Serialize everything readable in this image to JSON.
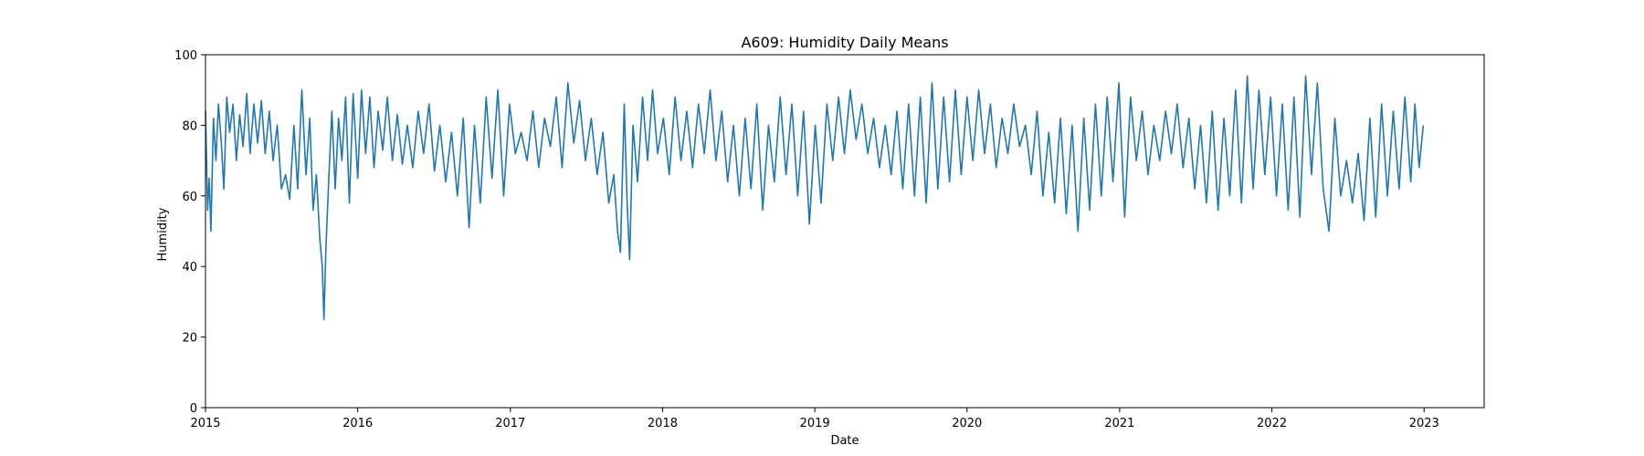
{
  "chart_data": {
    "type": "line",
    "title": "A609: Humidity Daily Means",
    "xlabel": "Date",
    "ylabel": "Humidity",
    "xlim": [
      "2015-01-01",
      "2023-05-25"
    ],
    "ylim": [
      0,
      100
    ],
    "x_ticks": [
      "2015",
      "2016",
      "2017",
      "2018",
      "2019",
      "2020",
      "2021",
      "2022",
      "2023"
    ],
    "y_ticks": [
      "0",
      "20",
      "40",
      "60",
      "80",
      "100"
    ],
    "grid": false,
    "legend": "none",
    "series": [
      {
        "color": "#1f77b4",
        "points": [
          [
            "2015-01-01",
            84
          ],
          [
            "2015-01-06",
            56
          ],
          [
            "2015-01-10",
            65
          ],
          [
            "2015-01-14",
            50
          ],
          [
            "2015-01-20",
            82
          ],
          [
            "2015-01-26",
            70
          ],
          [
            "2015-02-01",
            86
          ],
          [
            "2015-02-08",
            75
          ],
          [
            "2015-02-14",
            62
          ],
          [
            "2015-02-21",
            88
          ],
          [
            "2015-02-28",
            78
          ],
          [
            "2015-03-08",
            86
          ],
          [
            "2015-03-16",
            70
          ],
          [
            "2015-03-24",
            83
          ],
          [
            "2015-04-01",
            74
          ],
          [
            "2015-04-10",
            89
          ],
          [
            "2015-04-18",
            72
          ],
          [
            "2015-04-27",
            86
          ],
          [
            "2015-05-06",
            75
          ],
          [
            "2015-05-15",
            87
          ],
          [
            "2015-05-24",
            72
          ],
          [
            "2015-06-03",
            84
          ],
          [
            "2015-06-12",
            70
          ],
          [
            "2015-06-22",
            80
          ],
          [
            "2015-07-02",
            62
          ],
          [
            "2015-07-12",
            66
          ],
          [
            "2015-07-22",
            59
          ],
          [
            "2015-08-01",
            80
          ],
          [
            "2015-08-10",
            62
          ],
          [
            "2015-08-20",
            90
          ],
          [
            "2015-08-30",
            66
          ],
          [
            "2015-09-08",
            82
          ],
          [
            "2015-09-16",
            56
          ],
          [
            "2015-09-24",
            66
          ],
          [
            "2015-10-02",
            48
          ],
          [
            "2015-10-08",
            40
          ],
          [
            "2015-10-12",
            25
          ],
          [
            "2015-10-17",
            46
          ],
          [
            "2015-10-24",
            66
          ],
          [
            "2015-10-31",
            84
          ],
          [
            "2015-11-08",
            62
          ],
          [
            "2015-11-16",
            82
          ],
          [
            "2015-11-24",
            70
          ],
          [
            "2015-12-03",
            88
          ],
          [
            "2015-12-12",
            58
          ],
          [
            "2015-12-21",
            89
          ],
          [
            "2016-01-01",
            65
          ],
          [
            "2016-01-10",
            90
          ],
          [
            "2016-01-20",
            72
          ],
          [
            "2016-01-30",
            88
          ],
          [
            "2016-02-09",
            68
          ],
          [
            "2016-02-19",
            84
          ],
          [
            "2016-03-01",
            73
          ],
          [
            "2016-03-12",
            88
          ],
          [
            "2016-03-24",
            70
          ],
          [
            "2016-04-05",
            83
          ],
          [
            "2016-04-17",
            69
          ],
          [
            "2016-04-29",
            80
          ],
          [
            "2016-05-12",
            68
          ],
          [
            "2016-05-25",
            84
          ],
          [
            "2016-06-07",
            72
          ],
          [
            "2016-06-20",
            86
          ],
          [
            "2016-07-03",
            67
          ],
          [
            "2016-07-16",
            80
          ],
          [
            "2016-07-30",
            64
          ],
          [
            "2016-08-13",
            78
          ],
          [
            "2016-08-27",
            60
          ],
          [
            "2016-09-10",
            82
          ],
          [
            "2016-09-24",
            51
          ],
          [
            "2016-10-07",
            80
          ],
          [
            "2016-10-21",
            58
          ],
          [
            "2016-11-04",
            88
          ],
          [
            "2016-11-18",
            65
          ],
          [
            "2016-12-02",
            90
          ],
          [
            "2016-12-16",
            60
          ],
          [
            "2016-12-30",
            86
          ],
          [
            "2017-01-13",
            72
          ],
          [
            "2017-01-27",
            78
          ],
          [
            "2017-02-10",
            70
          ],
          [
            "2017-02-24",
            84
          ],
          [
            "2017-03-10",
            68
          ],
          [
            "2017-03-24",
            82
          ],
          [
            "2017-04-07",
            74
          ],
          [
            "2017-04-21",
            88
          ],
          [
            "2017-05-05",
            68
          ],
          [
            "2017-05-19",
            92
          ],
          [
            "2017-06-02",
            75
          ],
          [
            "2017-06-16",
            87
          ],
          [
            "2017-06-30",
            70
          ],
          [
            "2017-07-14",
            82
          ],
          [
            "2017-07-28",
            66
          ],
          [
            "2017-08-11",
            78
          ],
          [
            "2017-08-25",
            58
          ],
          [
            "2017-09-06",
            66
          ],
          [
            "2017-09-15",
            50
          ],
          [
            "2017-09-22",
            44
          ],
          [
            "2017-10-01",
            86
          ],
          [
            "2017-10-08",
            58
          ],
          [
            "2017-10-14",
            42
          ],
          [
            "2017-10-22",
            80
          ],
          [
            "2017-11-02",
            64
          ],
          [
            "2017-11-14",
            88
          ],
          [
            "2017-11-26",
            70
          ],
          [
            "2017-12-08",
            90
          ],
          [
            "2017-12-20",
            72
          ],
          [
            "2018-01-03",
            82
          ],
          [
            "2018-01-17",
            66
          ],
          [
            "2018-01-31",
            88
          ],
          [
            "2018-02-14",
            70
          ],
          [
            "2018-02-28",
            84
          ],
          [
            "2018-03-14",
            68
          ],
          [
            "2018-03-28",
            86
          ],
          [
            "2018-04-11",
            72
          ],
          [
            "2018-04-25",
            90
          ],
          [
            "2018-05-09",
            70
          ],
          [
            "2018-05-23",
            84
          ],
          [
            "2018-06-06",
            64
          ],
          [
            "2018-06-20",
            80
          ],
          [
            "2018-07-04",
            60
          ],
          [
            "2018-07-18",
            82
          ],
          [
            "2018-08-01",
            62
          ],
          [
            "2018-08-15",
            86
          ],
          [
            "2018-08-29",
            56
          ],
          [
            "2018-09-12",
            80
          ],
          [
            "2018-09-26",
            64
          ],
          [
            "2018-10-10",
            88
          ],
          [
            "2018-10-24",
            66
          ],
          [
            "2018-11-07",
            86
          ],
          [
            "2018-11-21",
            60
          ],
          [
            "2018-12-05",
            84
          ],
          [
            "2018-12-19",
            52
          ],
          [
            "2019-01-02",
            80
          ],
          [
            "2019-01-16",
            58
          ],
          [
            "2019-01-30",
            86
          ],
          [
            "2019-02-13",
            70
          ],
          [
            "2019-02-27",
            88
          ],
          [
            "2019-03-13",
            72
          ],
          [
            "2019-03-27",
            90
          ],
          [
            "2019-04-10",
            76
          ],
          [
            "2019-04-24",
            86
          ],
          [
            "2019-05-08",
            72
          ],
          [
            "2019-05-22",
            82
          ],
          [
            "2019-06-05",
            68
          ],
          [
            "2019-06-19",
            80
          ],
          [
            "2019-07-03",
            66
          ],
          [
            "2019-07-17",
            84
          ],
          [
            "2019-07-31",
            62
          ],
          [
            "2019-08-14",
            86
          ],
          [
            "2019-08-28",
            60
          ],
          [
            "2019-09-11",
            88
          ],
          [
            "2019-09-25",
            58
          ],
          [
            "2019-10-09",
            92
          ],
          [
            "2019-10-23",
            62
          ],
          [
            "2019-11-06",
            88
          ],
          [
            "2019-11-20",
            64
          ],
          [
            "2019-12-04",
            90
          ],
          [
            "2019-12-18",
            66
          ],
          [
            "2020-01-01",
            88
          ],
          [
            "2020-01-15",
            70
          ],
          [
            "2020-01-29",
            90
          ],
          [
            "2020-02-12",
            72
          ],
          [
            "2020-02-26",
            86
          ],
          [
            "2020-03-11",
            68
          ],
          [
            "2020-03-25",
            82
          ],
          [
            "2020-04-08",
            72
          ],
          [
            "2020-04-22",
            86
          ],
          [
            "2020-05-06",
            74
          ],
          [
            "2020-05-20",
            80
          ],
          [
            "2020-06-03",
            66
          ],
          [
            "2020-06-17",
            84
          ],
          [
            "2020-07-01",
            60
          ],
          [
            "2020-07-15",
            78
          ],
          [
            "2020-07-29",
            58
          ],
          [
            "2020-08-12",
            82
          ],
          [
            "2020-08-26",
            55
          ],
          [
            "2020-09-09",
            80
          ],
          [
            "2020-09-23",
            50
          ],
          [
            "2020-10-07",
            82
          ],
          [
            "2020-10-21",
            56
          ],
          [
            "2020-11-04",
            86
          ],
          [
            "2020-11-18",
            60
          ],
          [
            "2020-12-02",
            88
          ],
          [
            "2020-12-16",
            64
          ],
          [
            "2020-12-30",
            92
          ],
          [
            "2021-01-13",
            54
          ],
          [
            "2021-01-27",
            88
          ],
          [
            "2021-02-10",
            70
          ],
          [
            "2021-02-24",
            84
          ],
          [
            "2021-03-10",
            66
          ],
          [
            "2021-03-24",
            80
          ],
          [
            "2021-04-07",
            70
          ],
          [
            "2021-04-21",
            84
          ],
          [
            "2021-05-05",
            72
          ],
          [
            "2021-05-19",
            86
          ],
          [
            "2021-06-02",
            68
          ],
          [
            "2021-06-16",
            82
          ],
          [
            "2021-06-30",
            62
          ],
          [
            "2021-07-14",
            80
          ],
          [
            "2021-07-28",
            58
          ],
          [
            "2021-08-11",
            84
          ],
          [
            "2021-08-25",
            56
          ],
          [
            "2021-09-08",
            82
          ],
          [
            "2021-09-22",
            60
          ],
          [
            "2021-10-06",
            90
          ],
          [
            "2021-10-20",
            58
          ],
          [
            "2021-11-03",
            94
          ],
          [
            "2021-11-17",
            62
          ],
          [
            "2021-12-01",
            90
          ],
          [
            "2021-12-15",
            66
          ],
          [
            "2021-12-29",
            88
          ],
          [
            "2022-01-12",
            60
          ],
          [
            "2022-01-26",
            86
          ],
          [
            "2022-02-09",
            56
          ],
          [
            "2022-02-23",
            88
          ],
          [
            "2022-03-09",
            54
          ],
          [
            "2022-03-23",
            94
          ],
          [
            "2022-04-06",
            66
          ],
          [
            "2022-04-20",
            92
          ],
          [
            "2022-05-04",
            62
          ],
          [
            "2022-05-18",
            50
          ],
          [
            "2022-06-01",
            82
          ],
          [
            "2022-06-15",
            60
          ],
          [
            "2022-06-29",
            70
          ],
          [
            "2022-07-13",
            58
          ],
          [
            "2022-07-27",
            72
          ],
          [
            "2022-08-10",
            53
          ],
          [
            "2022-08-24",
            82
          ],
          [
            "2022-09-07",
            54
          ],
          [
            "2022-09-21",
            86
          ],
          [
            "2022-10-05",
            60
          ],
          [
            "2022-10-19",
            84
          ],
          [
            "2022-11-02",
            62
          ],
          [
            "2022-11-16",
            88
          ],
          [
            "2022-11-30",
            64
          ],
          [
            "2022-12-10",
            86
          ],
          [
            "2022-12-20",
            68
          ],
          [
            "2022-12-30",
            80
          ]
        ]
      }
    ]
  }
}
